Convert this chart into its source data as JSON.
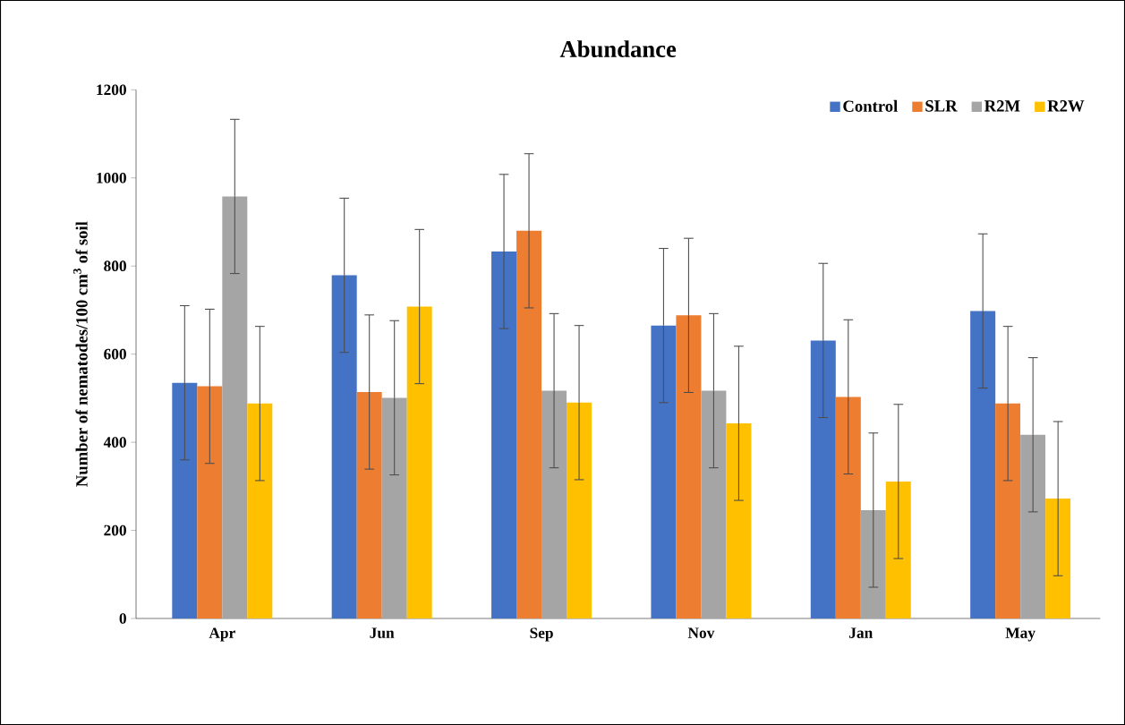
{
  "chart_data": {
    "type": "bar",
    "title": "Abundance",
    "ylabel": "Number of nematodes/100 cm$^{3}$ of soil",
    "categories": [
      "Apr",
      "Jun",
      "Sep",
      "Nov",
      "Jan",
      "May"
    ],
    "series": [
      {
        "name": "Control",
        "color": "#4472c4",
        "values": [
          535,
          779,
          833,
          665,
          631,
          698
        ],
        "errors": [
          175,
          175,
          175,
          175,
          175,
          175
        ]
      },
      {
        "name": "SLR",
        "color": "#ed7d31",
        "values": [
          527,
          514,
          880,
          688,
          503,
          488
        ],
        "errors": [
          175,
          175,
          175,
          175,
          175,
          175
        ]
      },
      {
        "name": "R2M",
        "color": "#a5a5a5",
        "values": [
          958,
          501,
          517,
          517,
          246,
          417
        ],
        "errors": [
          175,
          175,
          175,
          175,
          175,
          175
        ]
      },
      {
        "name": "R2W",
        "color": "#ffc000",
        "values": [
          488,
          708,
          490,
          443,
          311,
          272
        ],
        "errors": [
          175,
          175,
          175,
          175,
          175,
          175
        ]
      }
    ],
    "ylim": [
      0,
      1200
    ],
    "yticks": [
      0,
      200,
      400,
      600,
      800,
      1000,
      1200
    ],
    "grid": false,
    "legend": "top right"
  }
}
